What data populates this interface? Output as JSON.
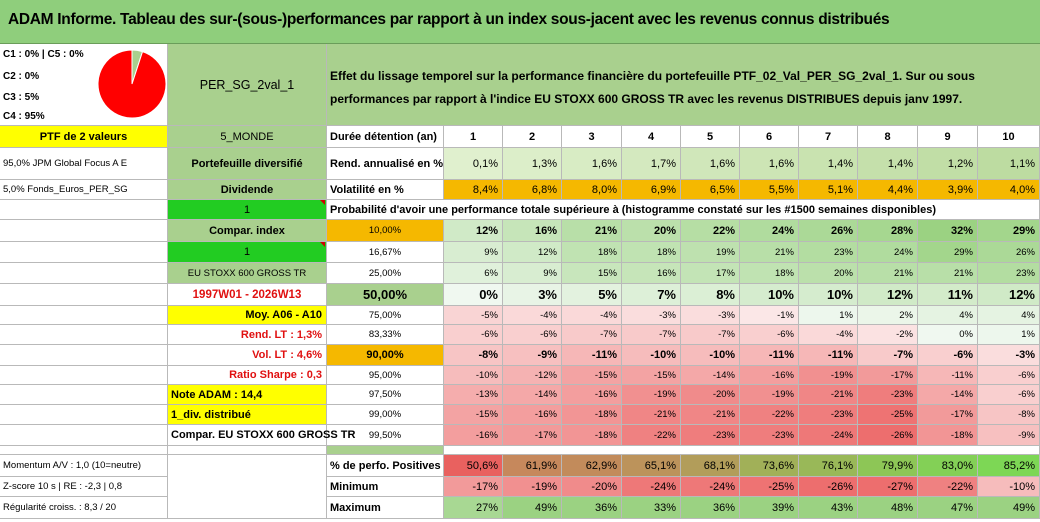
{
  "title": "ADAM Informe. Tableau des sur-(sous-)performances par rapport à un index sous-jacent avec les revenus connus distribués",
  "colors": {
    "banner": "#8fce7c",
    "green": "#a9d08e",
    "bright_green": "#22cc22",
    "yellow": "#ffff00",
    "orange": "#f5b800",
    "red_text": "#e01010"
  },
  "pie": {
    "lines": [
      "C1 : 0% | C5 : 0%",
      "C2 : 0%",
      "C3 : 5%",
      "C4 : 95%"
    ],
    "slices": [
      0,
      0,
      5,
      95,
      0
    ],
    "slice_colors": [
      "#7aa0d0",
      "#c0c0c0",
      "#a9d08e",
      "#ff0000",
      "#ffffff"
    ]
  },
  "portfolio_name": "PER_SG_2val_1",
  "description": "Effet du lissage temporel sur la performance financière du portefeuille PTF_02_Val_PER_SG_2val_1. Sur ou sous performances par rapport à l'indice EU STOXX 600 GROSS TR avec les revenus DISTRIBUES depuis janv 1997.",
  "left_panel": {
    "ptf_label": "PTF de 2 valeurs",
    "holding_1": "95,0% JPM Global Focus A E",
    "holding_2": "5,0% Fonds_Euros_PER_SG"
  },
  "info_col": {
    "zone": "5_MONDE",
    "type": "Portefeuille diversifié",
    "income": "Dividende",
    "one_a": "1",
    "compar_index": "Compar. index",
    "one_b": "1",
    "index_name": "EU STOXX 600 GROSS TR",
    "period": "1997W01 - 2026W13",
    "avg": "Moy. A06 - A10",
    "rend_lt": "Rend. LT : 1,3%",
    "vol_lt": "Vol. LT : 4,6%",
    "sharpe": "Ratio Sharpe : 0,3",
    "note": "Note ADAM : 14,4",
    "div": "1_div. distribué",
    "compar_full": "Compar. EU STOXX 600 GROSS TR"
  },
  "table": {
    "durations_label": "Durée détention (an)",
    "durations": [
      "1",
      "2",
      "3",
      "4",
      "5",
      "6",
      "7",
      "8",
      "9",
      "10"
    ],
    "rend_label": "Rend. annualisé en %",
    "rend": [
      "0,1%",
      "1,3%",
      "1,6%",
      "1,7%",
      "1,6%",
      "1,6%",
      "1,4%",
      "1,4%",
      "1,2%",
      "1,1%"
    ],
    "vol_label": "Volatilité en %",
    "vol": [
      "8,4%",
      "6,8%",
      "8,0%",
      "6,9%",
      "6,5%",
      "5,5%",
      "5,1%",
      "4,4%",
      "3,9%",
      "4,0%"
    ],
    "prob_caption": "Probabilité d'avoir une performance totale supérieure à (histogramme constaté sur les #1500 semaines disponibles)",
    "prob_rows": [
      {
        "p": "10,00%",
        "v": [
          "12%",
          "16%",
          "21%",
          "20%",
          "22%",
          "24%",
          "26%",
          "28%",
          "32%",
          "29%"
        ]
      },
      {
        "p": "16,67%",
        "v": [
          "9%",
          "12%",
          "18%",
          "18%",
          "19%",
          "21%",
          "23%",
          "24%",
          "29%",
          "26%"
        ]
      },
      {
        "p": "25,00%",
        "v": [
          "6%",
          "9%",
          "15%",
          "16%",
          "17%",
          "18%",
          "20%",
          "21%",
          "21%",
          "23%"
        ]
      },
      {
        "p": "50,00%",
        "v": [
          "0%",
          "3%",
          "5%",
          "7%",
          "8%",
          "10%",
          "10%",
          "12%",
          "11%",
          "12%"
        ]
      },
      {
        "p": "75,00%",
        "v": [
          "-5%",
          "-4%",
          "-4%",
          "-3%",
          "-3%",
          "-1%",
          "1%",
          "2%",
          "4%",
          "4%"
        ]
      },
      {
        "p": "83,33%",
        "v": [
          "-6%",
          "-6%",
          "-7%",
          "-7%",
          "-7%",
          "-6%",
          "-4%",
          "-2%",
          "0%",
          "1%"
        ]
      },
      {
        "p": "90,00%",
        "v": [
          "-8%",
          "-9%",
          "-11%",
          "-10%",
          "-10%",
          "-11%",
          "-11%",
          "-7%",
          "-6%",
          "-3%"
        ]
      },
      {
        "p": "95,00%",
        "v": [
          "-10%",
          "-12%",
          "-15%",
          "-15%",
          "-14%",
          "-16%",
          "-19%",
          "-17%",
          "-11%",
          "-6%"
        ]
      },
      {
        "p": "97,50%",
        "v": [
          "-13%",
          "-14%",
          "-16%",
          "-19%",
          "-20%",
          "-19%",
          "-21%",
          "-23%",
          "-14%",
          "-6%"
        ]
      },
      {
        "p": "99,00%",
        "v": [
          "-15%",
          "-16%",
          "-18%",
          "-21%",
          "-21%",
          "-22%",
          "-23%",
          "-25%",
          "-17%",
          "-8%"
        ]
      },
      {
        "p": "99,50%",
        "v": [
          "-16%",
          "-17%",
          "-18%",
          "-22%",
          "-23%",
          "-23%",
          "-24%",
          "-26%",
          "-18%",
          "-9%"
        ]
      }
    ],
    "pos_label": "% de perfo. Positives",
    "pos": [
      "50,6%",
      "61,9%",
      "62,9%",
      "65,1%",
      "68,1%",
      "73,6%",
      "76,1%",
      "79,9%",
      "83,0%",
      "85,2%"
    ],
    "min_label": "Minimum",
    "min": [
      "-17%",
      "-19%",
      "-20%",
      "-24%",
      "-24%",
      "-25%",
      "-26%",
      "-27%",
      "-22%",
      "-10%"
    ],
    "max_label": "Maximum",
    "max": [
      "27%",
      "49%",
      "36%",
      "33%",
      "36%",
      "39%",
      "43%",
      "48%",
      "47%",
      "49%"
    ]
  },
  "stats": {
    "momentum": "Momentum A/V : 1,0 (10=neutre)",
    "zscore": "Z-score 10 s | RE : -2,3 | 0,8",
    "regularity": "Régularité croiss. : 8,3 / 20"
  }
}
